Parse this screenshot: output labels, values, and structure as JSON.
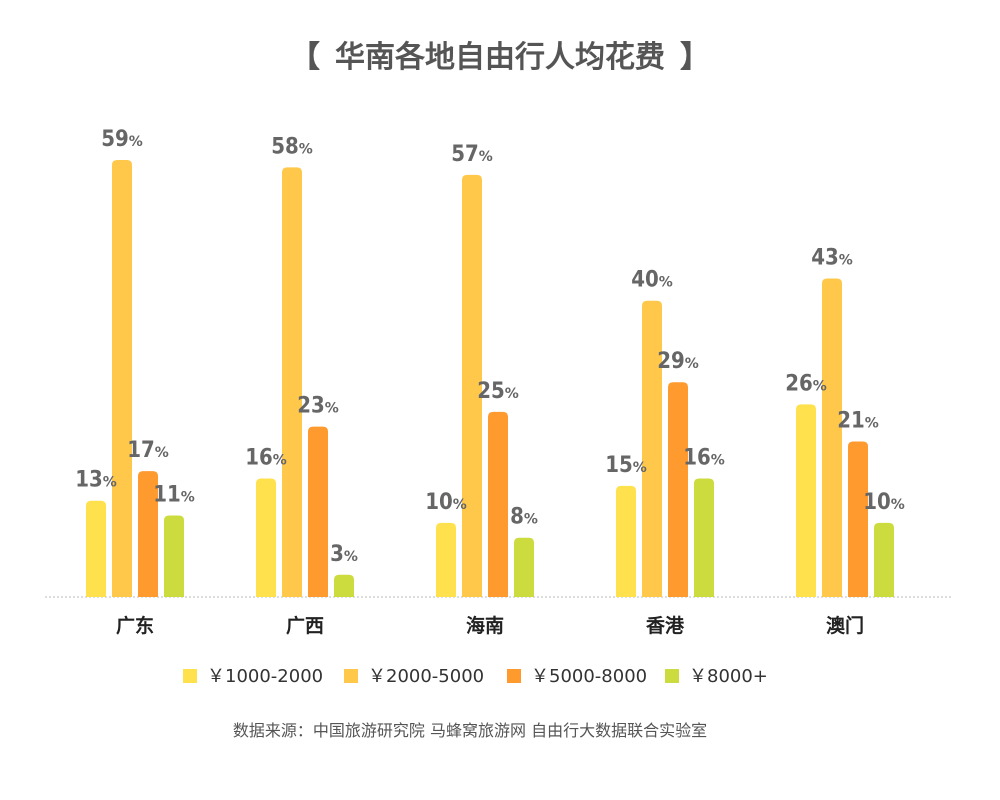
{
  "chart_data": {
    "type": "bar",
    "title": "华南各地自由行人均花费",
    "title_bracket_open": "【",
    "title_bracket_close": "】",
    "categories": [
      "广东",
      "广西",
      "海南",
      "香港",
      "澳门"
    ],
    "series": [
      {
        "name": "￥1000-2000",
        "color": "#FFE14D",
        "values": [
          13,
          16,
          10,
          15,
          26
        ]
      },
      {
        "name": "￥2000-5000",
        "color": "#FFC84A",
        "values": [
          59,
          58,
          57,
          40,
          43
        ]
      },
      {
        "name": "￥5000-8000",
        "color": "#FF9A2E",
        "values": [
          17,
          23,
          25,
          29,
          21
        ]
      },
      {
        "name": "￥8000+",
        "color": "#CCDB3E",
        "values": [
          11,
          3,
          8,
          16,
          10
        ]
      }
    ],
    "value_suffix": "%",
    "ylim": [
      0,
      59
    ],
    "grid": false,
    "legend_position": "bottom"
  },
  "source": "数据来源：中国旅游研究院 马蜂窝旅游网 自由行大数据联合实验室"
}
